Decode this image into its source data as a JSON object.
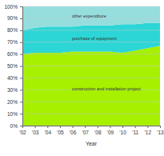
{
  "chart_data": {
    "type": "area",
    "stacked": true,
    "grid": true,
    "x_label": "Year",
    "categories": [
      "'02",
      "'03",
      "'04",
      "'05",
      "'06",
      "'07",
      "'08",
      "'09",
      "'10",
      "'11",
      "'12",
      "'13"
    ],
    "series": [
      {
        "name": "construction and installation project",
        "color": "#a6f000",
        "values": [
          60,
          61,
          61,
          61,
          62,
          62,
          62,
          62,
          61,
          63,
          65,
          67
        ]
      },
      {
        "name": "purchase of equipment",
        "color": "#2dd6d6",
        "values": [
          20,
          21,
          22,
          22,
          21,
          22,
          22,
          22,
          24,
          22,
          21,
          19
        ]
      },
      {
        "name": "other expenditure",
        "color": "#96dede",
        "values": [
          20,
          18,
          17,
          17,
          17,
          16,
          16,
          16,
          15,
          15,
          14,
          14
        ]
      }
    ],
    "ylim": [
      0,
      100
    ],
    "yticks": [
      {
        "value": 0,
        "label": "0%"
      },
      {
        "value": 10,
        "label": "10%"
      },
      {
        "value": 20,
        "label": "20%"
      },
      {
        "value": 30,
        "label": "30%"
      },
      {
        "value": 40,
        "label": "40%"
      },
      {
        "value": 50,
        "label": "50%"
      },
      {
        "value": 60,
        "label": "60%"
      },
      {
        "value": 70,
        "label": "70%"
      },
      {
        "value": 80,
        "label": "80%"
      },
      {
        "value": 90,
        "label": "90%"
      },
      {
        "value": 100,
        "label": "100%"
      }
    ]
  }
}
